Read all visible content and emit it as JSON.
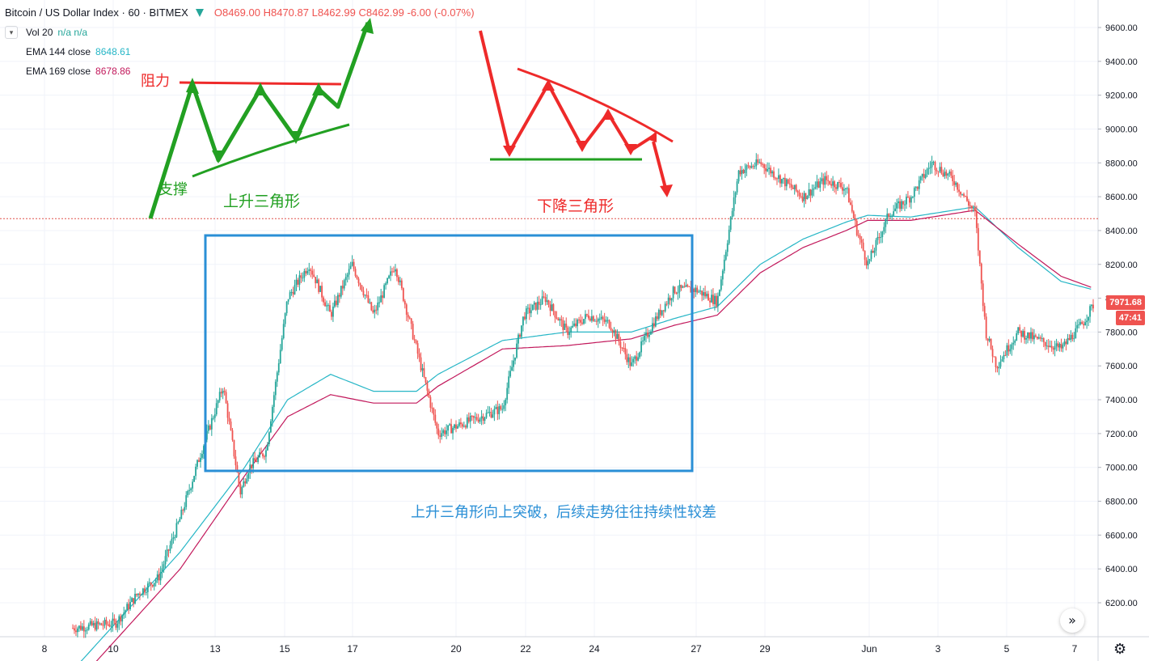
{
  "chart_data": {
    "type": "candlestick",
    "title": "Bitcoin / US Dollar Index · 60 · BITMEX",
    "ohlc_readout": {
      "open": "O8469.00",
      "high": "H8470.87",
      "low": "L8462.99",
      "close": "C8462.99",
      "change": "-6.00 (-0.07%)"
    },
    "indicators": [
      {
        "name": "Vol 20",
        "values": "n/a n/a",
        "color": "#26a69a"
      },
      {
        "name": "EMA 144 close",
        "value": "8648.61",
        "color": "#26b6c6"
      },
      {
        "name": "EMA 169 close",
        "value": "8678.86",
        "color": "#c2185b"
      }
    ],
    "ylim": [
      6000,
      9800
    ],
    "y_ticks": [
      "9600.00",
      "9400.00",
      "9200.00",
      "9000.00",
      "8800.00",
      "8600.00",
      "8400.00",
      "8200.00",
      "8000.00",
      "7800.00",
      "7600.00",
      "7400.00",
      "7200.00",
      "7000.00",
      "6800.00",
      "6600.00",
      "6400.00",
      "6200.00"
    ],
    "x_ticks": [
      "8",
      "10",
      "13",
      "15",
      "17",
      "20",
      "22",
      "24",
      "27",
      "29",
      "Jun",
      "3",
      "5",
      "7"
    ],
    "price_path": [
      {
        "t": 0,
        "p": 6050
      },
      {
        "t": 2,
        "p": 6080
      },
      {
        "t": 3,
        "p": 6250
      },
      {
        "t": 4,
        "p": 6350
      },
      {
        "t": 5,
        "p": 6700
      },
      {
        "t": 6,
        "p": 7100
      },
      {
        "t": 7,
        "p": 7480
      },
      {
        "t": 7.8,
        "p": 6850
      },
      {
        "t": 8.2,
        "p": 7000
      },
      {
        "t": 9,
        "p": 7100
      },
      {
        "t": 10,
        "p": 8000
      },
      {
        "t": 11,
        "p": 8200
      },
      {
        "t": 12,
        "p": 7900
      },
      {
        "t": 13,
        "p": 8200
      },
      {
        "t": 14,
        "p": 7900
      },
      {
        "t": 15,
        "p": 8200
      },
      {
        "t": 16,
        "p": 7700
      },
      {
        "t": 17,
        "p": 7200
      },
      {
        "t": 18,
        "p": 7250
      },
      {
        "t": 19,
        "p": 7300
      },
      {
        "t": 20,
        "p": 7350
      },
      {
        "t": 21,
        "p": 7900
      },
      {
        "t": 22,
        "p": 8000
      },
      {
        "t": 23,
        "p": 7800
      },
      {
        "t": 24,
        "p": 7900
      },
      {
        "t": 25,
        "p": 7850
      },
      {
        "t": 26,
        "p": 7600
      },
      {
        "t": 27,
        "p": 7850
      },
      {
        "t": 28,
        "p": 8050
      },
      {
        "t": 29,
        "p": 8050
      },
      {
        "t": 30,
        "p": 7980
      },
      {
        "t": 31,
        "p": 8750
      },
      {
        "t": 32,
        "p": 8800
      },
      {
        "t": 33,
        "p": 8700
      },
      {
        "t": 34,
        "p": 8600
      },
      {
        "t": 35,
        "p": 8700
      },
      {
        "t": 36,
        "p": 8650
      },
      {
        "t": 36.5,
        "p": 8400
      },
      {
        "t": 37,
        "p": 8200
      },
      {
        "t": 38,
        "p": 8500
      },
      {
        "t": 39,
        "p": 8600
      },
      {
        "t": 40,
        "p": 8800
      },
      {
        "t": 41,
        "p": 8700
      },
      {
        "t": 42,
        "p": 8500
      },
      {
        "t": 42.5,
        "p": 7800
      },
      {
        "t": 43,
        "p": 7600
      },
      {
        "t": 44,
        "p": 7800
      },
      {
        "t": 45,
        "p": 7750
      },
      {
        "t": 46,
        "p": 7700
      },
      {
        "t": 47,
        "p": 7850
      },
      {
        "t": 47.5,
        "p": 7960
      }
    ],
    "ema144_path": [
      {
        "t": 0,
        "p": 5800
      },
      {
        "t": 5,
        "p": 6500
      },
      {
        "t": 8,
        "p": 7000
      },
      {
        "t": 10,
        "p": 7400
      },
      {
        "t": 12,
        "p": 7550
      },
      {
        "t": 14,
        "p": 7450
      },
      {
        "t": 16,
        "p": 7450
      },
      {
        "t": 17,
        "p": 7550
      },
      {
        "t": 20,
        "p": 7750
      },
      {
        "t": 23,
        "p": 7800
      },
      {
        "t": 26,
        "p": 7800
      },
      {
        "t": 28,
        "p": 7880
      },
      {
        "t": 30,
        "p": 7950
      },
      {
        "t": 32,
        "p": 8200
      },
      {
        "t": 34,
        "p": 8350
      },
      {
        "t": 36,
        "p": 8450
      },
      {
        "t": 37,
        "p": 8490
      },
      {
        "t": 39,
        "p": 8480
      },
      {
        "t": 42,
        "p": 8540
      },
      {
        "t": 44,
        "p": 8300
      },
      {
        "t": 46,
        "p": 8100
      },
      {
        "t": 47.5,
        "p": 8050
      }
    ],
    "ema169_path": [
      {
        "t": 0,
        "p": 5700
      },
      {
        "t": 5,
        "p": 6400
      },
      {
        "t": 8,
        "p": 6950
      },
      {
        "t": 10,
        "p": 7300
      },
      {
        "t": 12,
        "p": 7430
      },
      {
        "t": 14,
        "p": 7380
      },
      {
        "t": 16,
        "p": 7380
      },
      {
        "t": 17,
        "p": 7480
      },
      {
        "t": 20,
        "p": 7700
      },
      {
        "t": 23,
        "p": 7720
      },
      {
        "t": 26,
        "p": 7760
      },
      {
        "t": 28,
        "p": 7840
      },
      {
        "t": 30,
        "p": 7900
      },
      {
        "t": 32,
        "p": 8150
      },
      {
        "t": 34,
        "p": 8300
      },
      {
        "t": 36,
        "p": 8400
      },
      {
        "t": 37,
        "p": 8460
      },
      {
        "t": 39,
        "p": 8460
      },
      {
        "t": 42,
        "p": 8520
      },
      {
        "t": 44,
        "p": 8320
      },
      {
        "t": 46,
        "p": 8130
      },
      {
        "t": 47.5,
        "p": 8060
      }
    ],
    "current_price_line": 8470,
    "last_price_label": "7971.68",
    "countdown_label": "47:41"
  },
  "annotations": {
    "resistance": "阻力",
    "support": "支撑",
    "ascending_triangle": "上升三角形",
    "descending_triangle": "下降三角形",
    "note": "上升三角形向上突破，后续走势往往持续性较差"
  },
  "colors": {
    "up": "#26a69a",
    "down": "#ef5350",
    "ema144": "#26b6c6",
    "ema169": "#c2185b",
    "green_annot": "#22a022",
    "red_annot": "#ee2a2a",
    "blue_annot": "#2a8fd6"
  },
  "icons": {
    "scroll_right": "double-chevron-right-icon",
    "settings": "gear-icon",
    "collapse": "chevron-down-icon"
  }
}
